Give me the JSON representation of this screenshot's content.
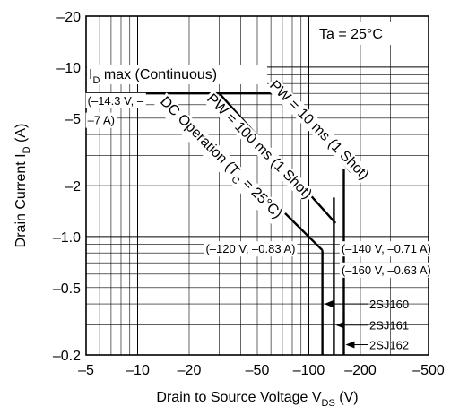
{
  "chart_data": {
    "type": "line",
    "xscale": "log",
    "yscale": "log",
    "xlim": [
      -5,
      -500
    ],
    "ylim": [
      -0.2,
      -20
    ],
    "xticks": [
      "–5",
      "–10",
      "–20",
      "–50",
      "–100",
      "–200",
      "–500"
    ],
    "xtick_values": [
      -5,
      -10,
      -20,
      -50,
      -100,
      -200,
      -500
    ],
    "yticks": [
      "–20",
      "–10",
      "–5",
      "–2",
      "–1.0",
      "–0.5",
      "–0.2"
    ],
    "ytick_values": [
      -20,
      -10,
      -5,
      -2,
      -1.0,
      -0.5,
      -0.2
    ],
    "xlabel_main": "Drain to Source Voltage  V",
    "xlabel_sub": "DS",
    "xlabel_unit": "  (V)",
    "ylabel_main": "Drain Current  I",
    "ylabel_sub": "D",
    "ylabel_unit": "  (A)",
    "grid": true,
    "condition": "Ta = 25°C",
    "series": [
      {
        "name": "DC Operation (Tc = 25°C)",
        "label_main": "DC Operation (T",
        "label_sub": "C",
        "label_tail": " = 25°C)",
        "points": [
          [
            -14.3,
            -7
          ],
          [
            -120,
            -0.83
          ]
        ]
      },
      {
        "name": "PW = 100 ms (1 Shot)",
        "points": [
          [
            -30,
            -7
          ],
          [
            -143,
            -1.2
          ]
        ]
      },
      {
        "name": "PW = 10 ms (1 Shot)",
        "points": [
          [
            -67,
            -7
          ],
          [
            -176,
            -2.4
          ]
        ]
      }
    ],
    "limit_lines": [
      {
        "name": "I_D max (Continuous)",
        "label_main": "I",
        "label_sub": "D",
        "label_tail": " max (Continuous)",
        "y": -7,
        "x_from": -5,
        "x_to": -67
      },
      {
        "name": "2SJ160",
        "x": -120,
        "y_from": -0.2,
        "y_to": -0.83
      },
      {
        "name": "2SJ161",
        "x": -140,
        "y_from": -0.2,
        "y_to": -1.7
      },
      {
        "name": "2SJ162",
        "x": -160,
        "y_from": -0.2,
        "y_to": -2.5
      }
    ],
    "annotations": [
      {
        "text": "(–14.3 V, –",
        "x": -5.1,
        "y": -6.0
      },
      {
        "text": "–7 A)",
        "x": -5.1,
        "y": -4.6
      },
      {
        "text": "(–120 V, –0.83 A)",
        "x": -25,
        "y": -0.8
      },
      {
        "text": "(–140 V, –0.71 A)",
        "x": -155,
        "y": -0.8
      },
      {
        "text": "(–160 V, –0.63 A)",
        "x": -155,
        "y": -0.6
      }
    ],
    "device_labels": [
      {
        "text": "2SJ160",
        "x_line": -120,
        "y": -0.4
      },
      {
        "text": "2SJ161",
        "x_line": -140,
        "y": -0.3
      },
      {
        "text": "2SJ162",
        "x_line": -160,
        "y": -0.23
      }
    ]
  }
}
